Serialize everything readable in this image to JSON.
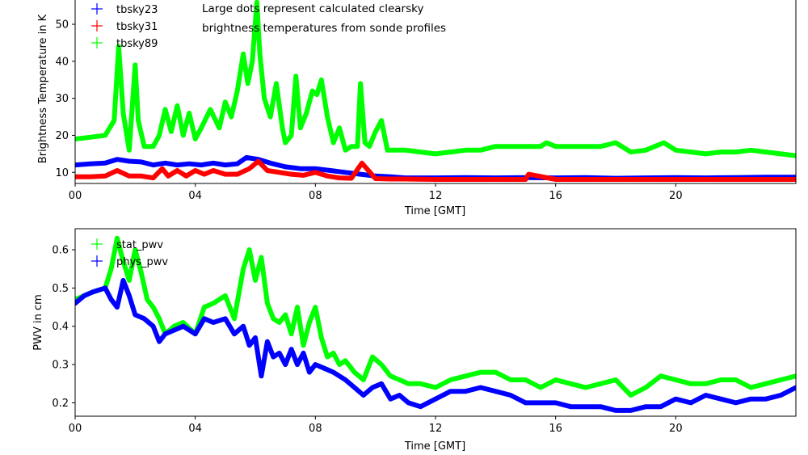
{
  "chart_data": [
    {
      "type": "line",
      "xlabel": "Time [GMT]",
      "ylabel": "Brightness Temperature in K",
      "xlim": [
        0,
        24
      ],
      "ylim": [
        7,
        57
      ],
      "xticks": [
        0,
        4,
        8,
        12,
        16,
        20
      ],
      "xtick_labels": [
        "00",
        "04",
        "08",
        "12",
        "16",
        "20"
      ],
      "yticks": [
        10,
        20,
        30,
        40,
        50
      ],
      "legend": "top-left",
      "annotation": [
        "Large dots represent calculated clearsky",
        "brightness temperatures from sonde profiles"
      ],
      "series": [
        {
          "name": "tbsky23",
          "color": "#0000ff",
          "x": [
            0,
            0.5,
            1,
            1.4,
            1.8,
            2.2,
            2.6,
            3,
            3.4,
            3.8,
            4.2,
            4.6,
            5,
            5.4,
            5.7,
            6.1,
            6.5,
            7,
            7.5,
            8,
            8.5,
            9,
            9.5,
            10,
            10.5,
            11,
            12,
            13,
            14,
            15,
            16,
            17,
            18,
            19,
            20,
            21,
            22,
            23,
            24
          ],
          "y": [
            12,
            12.3,
            12.5,
            13.5,
            13,
            12.8,
            12,
            12.5,
            12,
            12.3,
            12,
            12.5,
            12,
            12.3,
            14,
            13.5,
            12.5,
            11.5,
            11,
            11,
            10.5,
            10,
            9.5,
            9,
            8.8,
            8.5,
            8.5,
            8.6,
            8.5,
            8.6,
            8.5,
            8.6,
            8.4,
            8.5,
            8.6,
            8.5,
            8.6,
            8.7,
            8.7
          ]
        },
        {
          "name": "tbsky31",
          "color": "#ff0000",
          "x": [
            0,
            0.5,
            1,
            1.4,
            1.8,
            2.2,
            2.6,
            2.9,
            3.1,
            3.4,
            3.7,
            4,
            4.3,
            4.6,
            5,
            5.4,
            5.8,
            6.1,
            6.4,
            6.8,
            7.2,
            7.6,
            8,
            8.4,
            8.8,
            9.2,
            9.55,
            10,
            10.5,
            11,
            12,
            13,
            14,
            15,
            15.1,
            16,
            17,
            18,
            19,
            20,
            21,
            22,
            23,
            24
          ],
          "y": [
            8.8,
            8.8,
            9,
            10.5,
            9,
            9,
            8.5,
            11,
            9,
            10.5,
            9,
            10.5,
            9.5,
            10.5,
            9.5,
            9.5,
            11,
            13,
            10.5,
            10,
            9.5,
            9.2,
            10,
            9,
            8.5,
            8.4,
            12.5,
            8.3,
            8.2,
            8.2,
            8.1,
            8.1,
            8.1,
            8.1,
            9.5,
            8.1,
            8.1,
            8.1,
            8.1,
            8.1,
            8.1,
            8.1,
            8.1,
            8.1
          ]
        },
        {
          "name": "tbsky89",
          "color": "#00ff00",
          "x": [
            0,
            0.5,
            1,
            1.3,
            1.45,
            1.6,
            1.8,
            2,
            2.1,
            2.3,
            2.6,
            2.8,
            3,
            3.2,
            3.4,
            3.6,
            3.8,
            4,
            4.2,
            4.5,
            4.8,
            5,
            5.2,
            5.4,
            5.6,
            5.75,
            5.9,
            6.05,
            6.15,
            6.3,
            6.5,
            6.7,
            6.9,
            7,
            7.2,
            7.35,
            7.5,
            7.7,
            7.9,
            8.05,
            8.2,
            8.4,
            8.6,
            8.8,
            9,
            9.2,
            9.4,
            9.5,
            9.65,
            9.8,
            10,
            10.2,
            10.4,
            10.7,
            11,
            11.5,
            12,
            12.5,
            13,
            13.5,
            14,
            14.5,
            15,
            15.5,
            15.7,
            16,
            16.5,
            17,
            17.5,
            18,
            18.5,
            19,
            19.3,
            19.6,
            20,
            20.5,
            21,
            21.5,
            22,
            22.5,
            23,
            23.5,
            24
          ],
          "y": [
            19,
            19.5,
            20,
            24,
            44,
            26,
            16,
            39,
            24,
            17,
            17,
            20,
            27,
            21,
            28,
            20,
            26,
            19,
            22,
            27,
            22,
            29,
            25,
            32,
            42,
            34,
            40,
            56,
            42,
            30,
            25,
            34,
            22,
            18,
            20,
            36,
            22,
            26,
            32,
            31,
            35,
            25,
            18,
            22,
            16,
            17,
            17,
            34,
            18,
            17,
            21,
            24,
            16,
            16,
            16,
            15.5,
            15,
            15.5,
            16,
            16,
            17,
            17,
            17,
            17,
            18,
            17,
            17,
            17,
            17,
            18,
            15.5,
            16,
            17,
            18,
            16,
            15.5,
            15,
            15.5,
            15.5,
            16,
            15.5,
            15,
            14.5
          ]
        }
      ]
    },
    {
      "type": "line",
      "xlabel": "Time [GMT]",
      "ylabel": "PWV in cm",
      "xlim": [
        0,
        24
      ],
      "ylim": [
        0.165,
        0.655
      ],
      "xticks": [
        0,
        4,
        8,
        12,
        16,
        20
      ],
      "xtick_labels": [
        "00",
        "04",
        "08",
        "12",
        "16",
        "20"
      ],
      "yticks": [
        0.2,
        0.3,
        0.4,
        0.5,
        0.6
      ],
      "ytick_labels": [
        "0.2",
        "0.3",
        "0.4",
        "0.5",
        "0.6"
      ],
      "legend": "top-left",
      "series": [
        {
          "name": "stat_pwv",
          "color": "#00ff00",
          "x": [
            0,
            0.3,
            0.6,
            1,
            1.2,
            1.4,
            1.6,
            1.8,
            2,
            2.2,
            2.4,
            2.6,
            2.8,
            3,
            3.3,
            3.6,
            4,
            4.3,
            4.6,
            5,
            5.3,
            5.6,
            5.8,
            6,
            6.2,
            6.4,
            6.6,
            6.8,
            7,
            7.2,
            7.4,
            7.6,
            7.8,
            8,
            8.2,
            8.4,
            8.6,
            8.8,
            9,
            9.3,
            9.6,
            9.9,
            10.2,
            10.5,
            10.8,
            11.1,
            11.5,
            12,
            12.5,
            13,
            13.5,
            14,
            14.5,
            15,
            15.5,
            16,
            16.5,
            17,
            17.5,
            18,
            18.5,
            19,
            19.5,
            20,
            20.5,
            21,
            21.5,
            22,
            22.5,
            23,
            23.5,
            24
          ],
          "y": [
            0.47,
            0.48,
            0.49,
            0.5,
            0.55,
            0.63,
            0.57,
            0.52,
            0.6,
            0.54,
            0.47,
            0.45,
            0.42,
            0.38,
            0.4,
            0.41,
            0.38,
            0.45,
            0.46,
            0.48,
            0.42,
            0.55,
            0.6,
            0.52,
            0.58,
            0.46,
            0.42,
            0.41,
            0.43,
            0.38,
            0.45,
            0.35,
            0.41,
            0.45,
            0.37,
            0.32,
            0.33,
            0.3,
            0.31,
            0.28,
            0.26,
            0.32,
            0.3,
            0.27,
            0.26,
            0.25,
            0.25,
            0.24,
            0.26,
            0.27,
            0.28,
            0.28,
            0.26,
            0.26,
            0.24,
            0.26,
            0.25,
            0.24,
            0.25,
            0.26,
            0.22,
            0.24,
            0.27,
            0.26,
            0.25,
            0.25,
            0.26,
            0.26,
            0.24,
            0.25,
            0.26,
            0.27
          ]
        },
        {
          "name": "phys_pwv",
          "color": "#0000ff",
          "x": [
            0,
            0.3,
            0.6,
            1,
            1.2,
            1.4,
            1.6,
            1.8,
            2,
            2.3,
            2.6,
            2.8,
            3,
            3.3,
            3.6,
            4,
            4.3,
            4.6,
            5,
            5.3,
            5.6,
            5.8,
            6,
            6.2,
            6.4,
            6.6,
            6.8,
            7,
            7.2,
            7.4,
            7.6,
            7.8,
            8,
            8.3,
            8.6,
            9,
            9.3,
            9.6,
            9.9,
            10.2,
            10.5,
            10.8,
            11.1,
            11.5,
            12,
            12.5,
            13,
            13.5,
            14,
            14.5,
            15,
            15.5,
            16,
            16.5,
            17,
            17.5,
            18,
            18.5,
            19,
            19.5,
            20,
            20.5,
            21,
            21.5,
            22,
            22.5,
            23,
            23.5,
            24
          ],
          "y": [
            0.46,
            0.48,
            0.49,
            0.5,
            0.47,
            0.45,
            0.52,
            0.48,
            0.43,
            0.42,
            0.4,
            0.36,
            0.38,
            0.39,
            0.4,
            0.38,
            0.42,
            0.41,
            0.42,
            0.38,
            0.4,
            0.35,
            0.37,
            0.27,
            0.36,
            0.32,
            0.33,
            0.3,
            0.34,
            0.3,
            0.33,
            0.28,
            0.3,
            0.29,
            0.28,
            0.26,
            0.24,
            0.22,
            0.24,
            0.25,
            0.21,
            0.22,
            0.2,
            0.19,
            0.21,
            0.23,
            0.23,
            0.24,
            0.23,
            0.22,
            0.2,
            0.2,
            0.2,
            0.19,
            0.19,
            0.19,
            0.18,
            0.18,
            0.19,
            0.19,
            0.21,
            0.2,
            0.22,
            0.21,
            0.2,
            0.21,
            0.21,
            0.22,
            0.24
          ]
        }
      ]
    }
  ]
}
